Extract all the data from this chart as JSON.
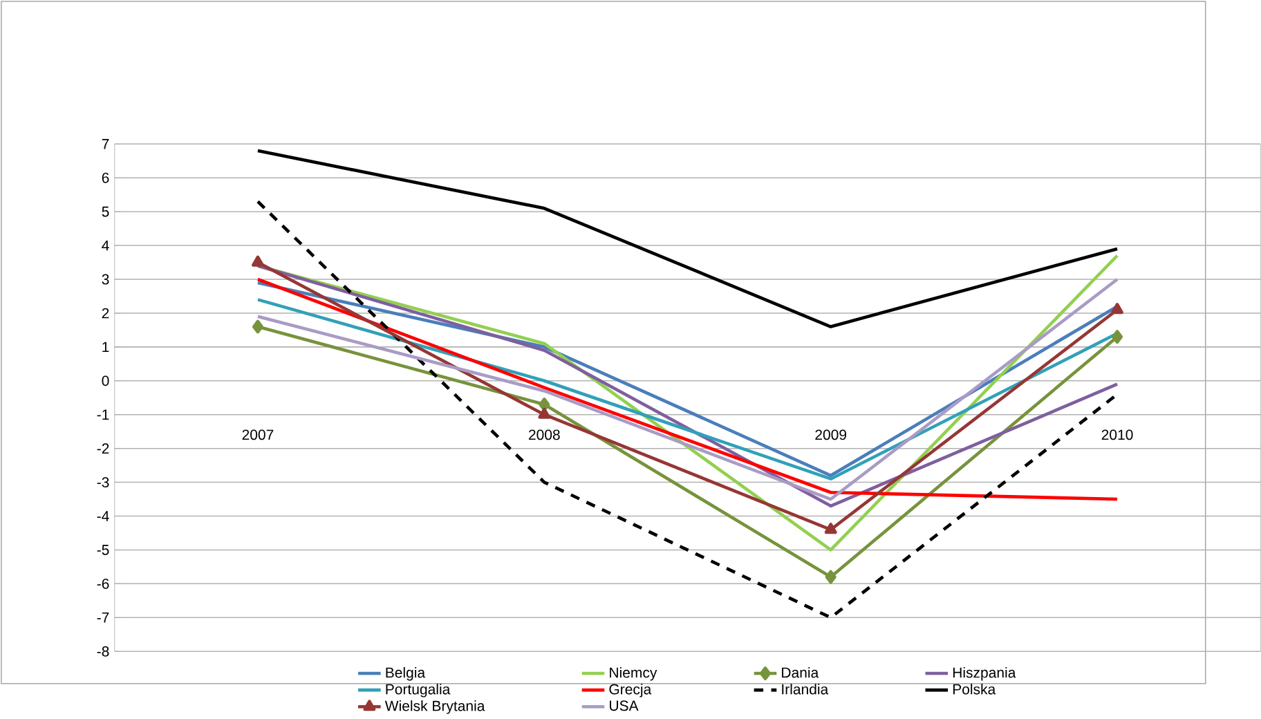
{
  "chart_data": {
    "type": "line",
    "categories": [
      "2007",
      "2008",
      "2009",
      "2010"
    ],
    "ylim": [
      -8,
      7
    ],
    "yticks": [
      -8,
      -7,
      -6,
      -5,
      -4,
      -3,
      -2,
      -1,
      0,
      1,
      2,
      3,
      4,
      5,
      6,
      7
    ],
    "grid": "y",
    "legend": "bottom",
    "series": [
      {
        "name": "Belgia",
        "color": "#4a7ebb",
        "values": [
          2.9,
          1.0,
          -2.8,
          2.2
        ]
      },
      {
        "name": "Niemcy",
        "color": "#92d050",
        "values": [
          3.4,
          1.1,
          -5.0,
          3.7
        ]
      },
      {
        "name": "Dania",
        "color": "#77933c",
        "marker": "diamond",
        "values": [
          1.6,
          -0.7,
          -5.8,
          1.3
        ]
      },
      {
        "name": "Hiszpania",
        "color": "#7f5f9f",
        "values": [
          3.4,
          0.9,
          -3.7,
          -0.1
        ]
      },
      {
        "name": "Portugalia",
        "color": "#31a0b8",
        "values": [
          2.4,
          0.0,
          -2.9,
          1.4
        ]
      },
      {
        "name": "Grecja",
        "color": "#ff0000",
        "values": [
          3.0,
          -0.2,
          -3.3,
          -3.5
        ]
      },
      {
        "name": "Irlandia",
        "color": "#000000",
        "line_style": "dashed",
        "values": [
          5.3,
          -3.0,
          -7.0,
          -0.4
        ]
      },
      {
        "name": "Polska",
        "color": "#000000",
        "values": [
          6.8,
          5.1,
          1.6,
          3.9
        ]
      },
      {
        "name": "Wielsk Brytania",
        "color": "#953735",
        "marker": "triangle",
        "values": [
          3.5,
          -1.0,
          -4.4,
          2.1
        ]
      },
      {
        "name": "USA",
        "color": "#a99bc6",
        "values": [
          1.9,
          -0.3,
          -3.5,
          3.0
        ]
      }
    ]
  }
}
